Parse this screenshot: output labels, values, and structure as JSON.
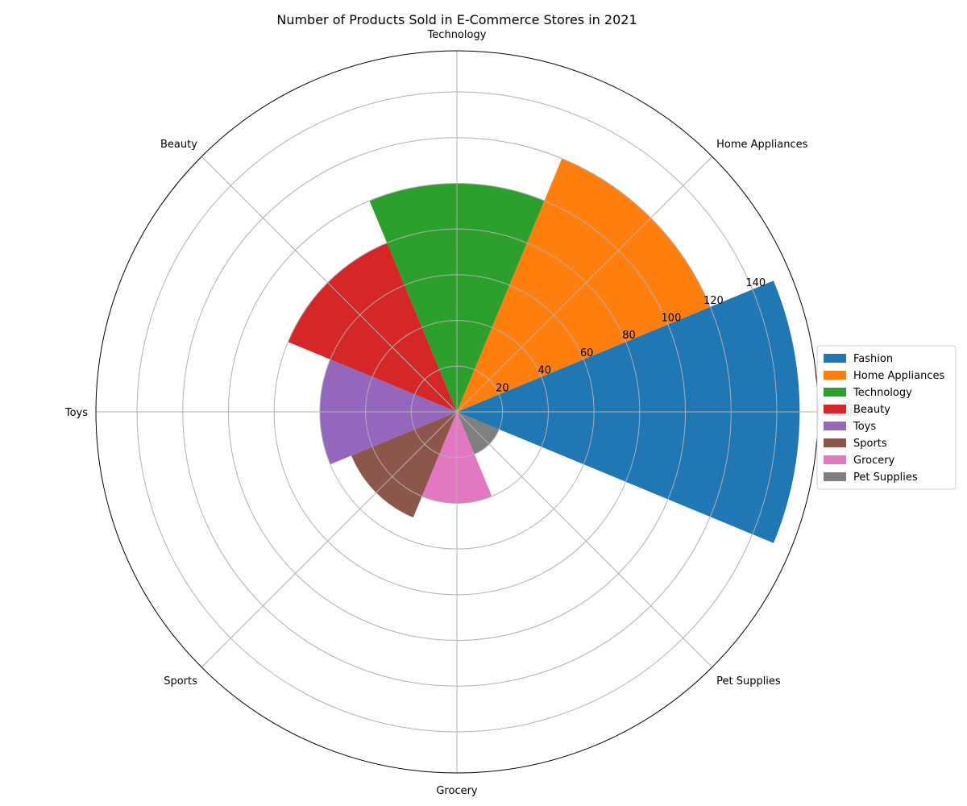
{
  "chart_data": {
    "type": "polar-bar",
    "title": "Number of Products Sold in E-Commerce Stores in 2021",
    "categories": [
      "Fashion",
      "Home Appliances",
      "Technology",
      "Beauty",
      "Toys",
      "Sports",
      "Grocery",
      "Pet Supplies"
    ],
    "values": [
      150,
      120,
      100,
      80,
      60,
      50,
      40,
      20
    ],
    "colors": [
      "#1f77b4",
      "#ff7f0e",
      "#2ca02c",
      "#d62728",
      "#9467bd",
      "#8c564b",
      "#e377c2",
      "#7f7f7f"
    ],
    "rlim": [
      0,
      158
    ],
    "radial_ticks": [
      20,
      40,
      60,
      80,
      100,
      120,
      140
    ],
    "grid": true,
    "legend": {
      "placement": "right",
      "entries": [
        "Fashion",
        "Home Appliances",
        "Technology",
        "Beauty",
        "Toys",
        "Sports",
        "Grocery",
        "Pet Supplies"
      ]
    }
  }
}
